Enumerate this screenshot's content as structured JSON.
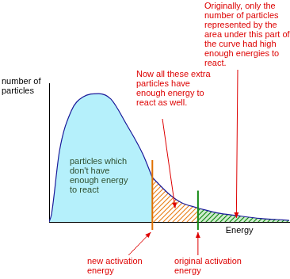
{
  "chart_data": {
    "type": "line",
    "x_label": "Energy",
    "y_label": "number of particles",
    "x": [
      0,
      1,
      4.3,
      9.2,
      14,
      20.7,
      25.7,
      32,
      39,
      43,
      50,
      55,
      62,
      70,
      78,
      88,
      95,
      100
    ],
    "values": [
      0,
      5.7,
      51,
      80,
      90,
      92.5,
      88.6,
      71,
      49,
      32,
      20,
      14,
      10,
      6.5,
      4.6,
      2.5,
      1.7,
      1.1
    ],
    "color": "#1a1a9a",
    "colors": [
      "#b5f0fb",
      "#e8801a",
      "#118811"
    ],
    "xlim": [
      0,
      100
    ],
    "ylim": [
      0,
      100
    ],
    "tick_labels": false,
    "grid": false,
    "thresholds": [
      {
        "label": "new activation energy",
        "value": 43,
        "color": "#e07000"
      },
      {
        "label": "original activation energy",
        "value": 62,
        "color": "#118811"
      }
    ],
    "annotations": [
      {
        "text": "particles which don't have enough energy to react"
      },
      {
        "text": "Now all these extra particles have enough energy to react as well."
      },
      {
        "text": "Originally, only the number of particles represented by the area under this part of the curve had high enough energies to react."
      }
    ]
  }
}
